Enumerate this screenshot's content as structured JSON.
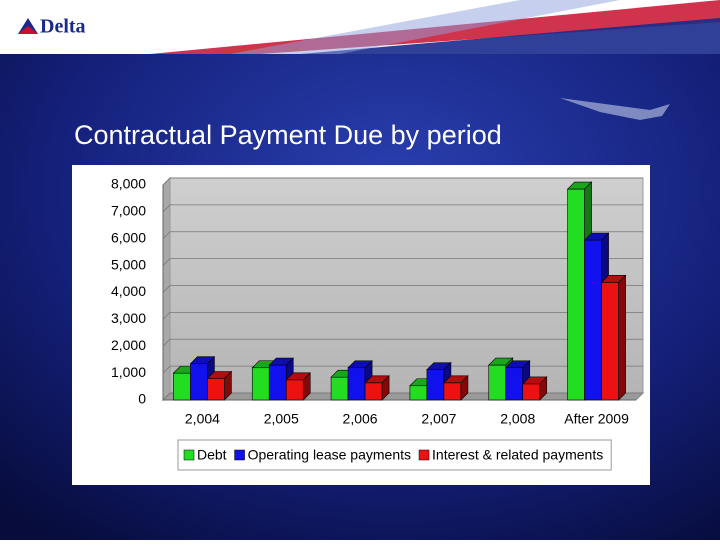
{
  "logo": "Delta",
  "chart_data": {
    "type": "bar",
    "title": "Contractual Payment Due by period",
    "categories": [
      "2,004",
      "2,005",
      "2,006",
      "2,007",
      "2,008",
      "After 2009"
    ],
    "series": [
      {
        "name": "Debt",
        "color": "#22dd22",
        "values": [
          1000,
          1200,
          850,
          530,
          1300,
          7850
        ]
      },
      {
        "name": "Operating lease payments",
        "color": "#1111ee",
        "values": [
          1350,
          1300,
          1200,
          1130,
          1200,
          5950
        ]
      },
      {
        "name": "Interest & related payments",
        "color": "#ee1111",
        "values": [
          800,
          750,
          640,
          640,
          600,
          4380
        ]
      }
    ],
    "ylim": [
      0,
      8000
    ],
    "yticks": [
      0,
      {
        "value": 1000,
        "label": "1,000"
      },
      {
        "value": 2000,
        "label": "2,000"
      },
      {
        "value": 3000,
        "label": "3,000"
      },
      {
        "value": 4000,
        "label": "4,000"
      },
      {
        "value": 5000,
        "label": "5,000"
      },
      {
        "value": 6000,
        "label": "6,000"
      },
      {
        "value": 7000,
        "label": "7,000"
      },
      {
        "value": 8000,
        "label": "8,000"
      }
    ],
    "grid": true,
    "legend": "bottom"
  }
}
